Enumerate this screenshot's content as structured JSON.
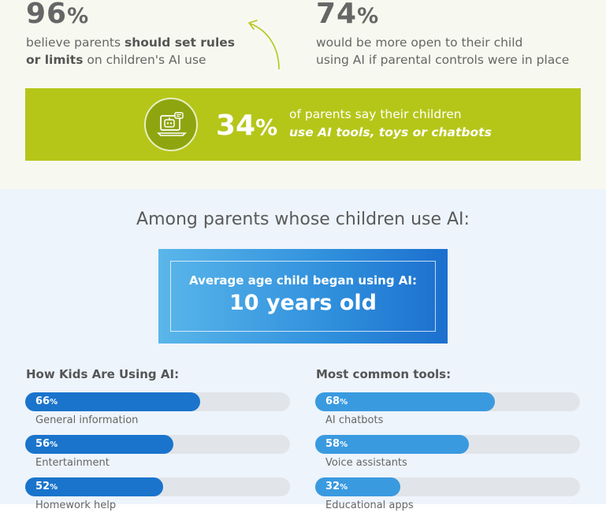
{
  "stats": {
    "left": {
      "value": "96",
      "unit": "%",
      "line1_pre": "believe parents ",
      "line1_bold": "should set rules",
      "line2_bold": "or limits",
      "line2_post": " on children's AI use"
    },
    "right": {
      "value": "74",
      "unit": "%",
      "line1": "would be more open to their child",
      "line2": "using AI if parental controls were in place"
    }
  },
  "highlight": {
    "value": "34",
    "unit": "%",
    "line1": "of parents say their children",
    "line2": "use AI tools, toys or chatbots",
    "icon": "robot-laptop-icon"
  },
  "section_title": "Among parents whose children use AI:",
  "age": {
    "label": "Average age child began using AI:",
    "value": "10 years old"
  },
  "colors": {
    "green": "#b5c619",
    "bar_dark": "#1a74cc",
    "bar_light": "#3a9ae0",
    "track": "#e1e5e9"
  },
  "chart_data": [
    {
      "type": "bar",
      "title": "How Kids Are Using AI:",
      "categories": [
        "General information",
        "Entertainment",
        "Homework help"
      ],
      "values": [
        66,
        56,
        52
      ],
      "value_labels": [
        "66",
        "56",
        "52"
      ],
      "unit": "%",
      "xlim": [
        0,
        100
      ]
    },
    {
      "type": "bar",
      "title": "Most common tools:",
      "categories": [
        "AI chatbots",
        "Voice assistants",
        "Educational apps"
      ],
      "values": [
        68,
        58,
        32
      ],
      "value_labels": [
        "68",
        "58",
        "32"
      ],
      "unit": "%",
      "xlim": [
        0,
        100
      ]
    }
  ]
}
